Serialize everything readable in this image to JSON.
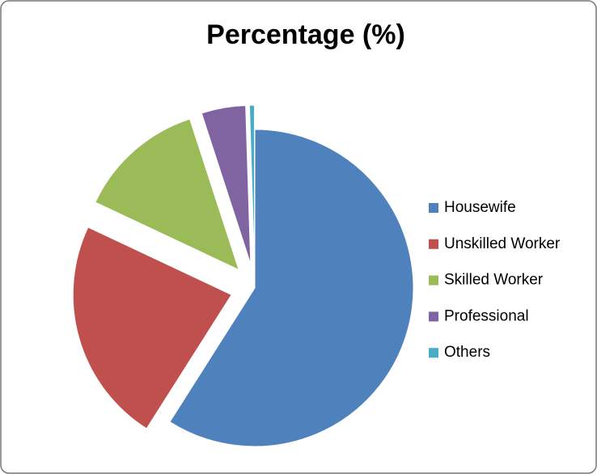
{
  "chart_data": {
    "type": "pie",
    "title": "Percentage (%)",
    "categories": [
      "Housewife",
      "Unskilled Worker",
      "Skilled Worker",
      "Professional",
      "Others"
    ],
    "values": [
      59,
      23,
      13,
      4.5,
      0.5
    ],
    "colors": [
      "#4f81bd",
      "#c0504d",
      "#9bbb59",
      "#8064a2",
      "#4bacc6"
    ],
    "legend": "right"
  }
}
